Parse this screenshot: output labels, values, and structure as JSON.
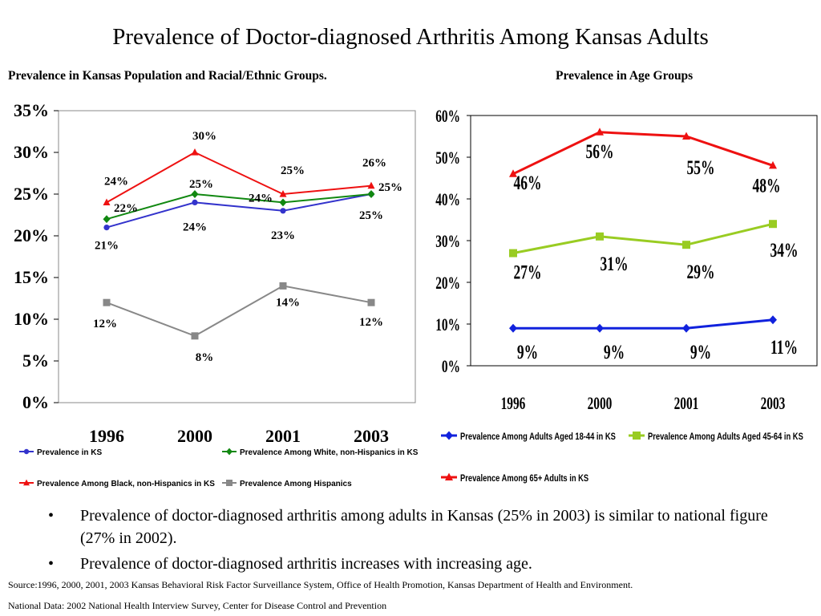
{
  "title": "Prevalence of Doctor-diagnosed Arthritis Among Kansas Adults",
  "left_subtitle": "Prevalence in Kansas Population and Racial/Ethnic Groups.",
  "right_subtitle": "Prevalence in Age Groups",
  "bullets": [
    "Prevalence of doctor-diagnosed arthritis among adults in Kansas (25% in 2003) is similar to national figure (27% in 2002).",
    "Prevalence of doctor-diagnosed arthritis increases with increasing age."
  ],
  "bullet_glyph": "•",
  "source_note": "Source:1996, 2000, 2001, 2003 Kansas Behavioral Risk Factor Surveillance System, Office of Health Promotion, Kansas Department of Health and Environment.",
  "national_note": "National Data: 2002 National Health Interview Survey, Center for Disease Control and Prevention",
  "chart_data": [
    {
      "type": "line",
      "categories": [
        "1996",
        "2000",
        "2001",
        "2003"
      ],
      "ylim": [
        0,
        35
      ],
      "yticks": [
        "0%",
        "5%",
        "10%",
        "15%",
        "20%",
        "25%",
        "30%",
        "35%"
      ],
      "grid": false,
      "legend_position": "bottom",
      "series": [
        {
          "name": "Prevalence in KS",
          "values": [
            21,
            24,
            23,
            25
          ],
          "labels": [
            "21%",
            "24%",
            "23%",
            "25%"
          ],
          "color": "#3333cc",
          "marker": "circle"
        },
        {
          "name": "Prevalence Among White, non-Hispanics in KS",
          "values": [
            22,
            25,
            24,
            25
          ],
          "labels": [
            "22%",
            "25%",
            "24%",
            "25%"
          ],
          "color": "#118811",
          "marker": "diamond"
        },
        {
          "name": "Prevalence Among Black, non-Hispanics in KS",
          "values": [
            24,
            30,
            25,
            26
          ],
          "labels": [
            "24%",
            "30%",
            "25%",
            "26%"
          ],
          "color": "#ee1111",
          "marker": "triangle"
        },
        {
          "name": "Prevalence Among Hispanics",
          "values": [
            12,
            8,
            14,
            12
          ],
          "labels": [
            "12%",
            "8%",
            "14%",
            "12%"
          ],
          "color": "#888888",
          "marker": "square"
        }
      ]
    },
    {
      "type": "line",
      "categories": [
        "1996",
        "2000",
        "2001",
        "2003"
      ],
      "ylim": [
        0,
        60
      ],
      "yticks": [
        "0%",
        "10%",
        "20%",
        "30%",
        "40%",
        "50%",
        "60%"
      ],
      "grid": false,
      "legend_position": "bottom",
      "series": [
        {
          "name": "Prevalence Among Adults Aged 18-44 in KS",
          "values": [
            9,
            9,
            9,
            11
          ],
          "labels": [
            "9%",
            "9%",
            "9%",
            "11%"
          ],
          "color": "#1122dd",
          "marker": "diamond"
        },
        {
          "name": "Prevalence Among Adults Aged 45-64 in KS",
          "values": [
            27,
            31,
            29,
            34
          ],
          "labels": [
            "27%",
            "31%",
            "29%",
            "34%"
          ],
          "color": "#99cc22",
          "marker": "square"
        },
        {
          "name": "Prevalence Among 65+ Adults in KS",
          "values": [
            46,
            56,
            55,
            48
          ],
          "labels": [
            "46%",
            "56%",
            "55%",
            "48%"
          ],
          "color": "#ee1111",
          "marker": "triangle"
        }
      ]
    }
  ]
}
